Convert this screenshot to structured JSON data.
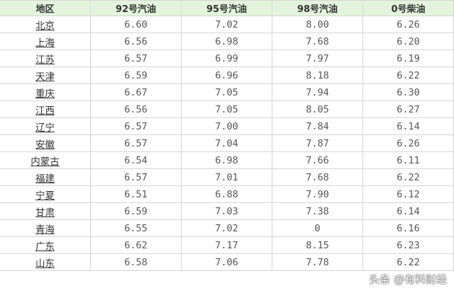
{
  "table": {
    "headers": [
      "地区",
      "92号汽油",
      "95号汽油",
      "98号汽油",
      "0号柴油"
    ],
    "rows": [
      [
        "北京",
        "6.60",
        "7.02",
        "8.00",
        "6.26"
      ],
      [
        "上海",
        "6.56",
        "6.98",
        "7.68",
        "6.20"
      ],
      [
        "江苏",
        "6.57",
        "6.99",
        "7.97",
        "6.19"
      ],
      [
        "天津",
        "6.59",
        "6.96",
        "8.18",
        "6.22"
      ],
      [
        "重庆",
        "6.67",
        "7.05",
        "7.94",
        "6.30"
      ],
      [
        "江西",
        "6.56",
        "7.05",
        "8.05",
        "6.27"
      ],
      [
        "辽宁",
        "6.57",
        "7.00",
        "7.84",
        "6.14"
      ],
      [
        "安徽",
        "6.57",
        "7.04",
        "7.87",
        "6.26"
      ],
      [
        "内蒙古",
        "6.54",
        "6.98",
        "7.66",
        "6.11"
      ],
      [
        "福建",
        "6.57",
        "7.01",
        "7.68",
        "6.22"
      ],
      [
        "宁夏",
        "6.51",
        "6.88",
        "7.90",
        "6.12"
      ],
      [
        "甘肃",
        "6.59",
        "7.03",
        "7.38",
        "6.14"
      ],
      [
        "青海",
        "6.55",
        "7.02",
        "0",
        "6.16"
      ],
      [
        "广东",
        "6.62",
        "7.17",
        "8.15",
        "6.23"
      ],
      [
        "山东",
        "6.58",
        "7.06",
        "7.78",
        "6.22"
      ]
    ]
  },
  "watermark": "头条 @有料财经",
  "colors": {
    "header_bg": "#e3f4dc",
    "border": "#d4d4d4"
  }
}
